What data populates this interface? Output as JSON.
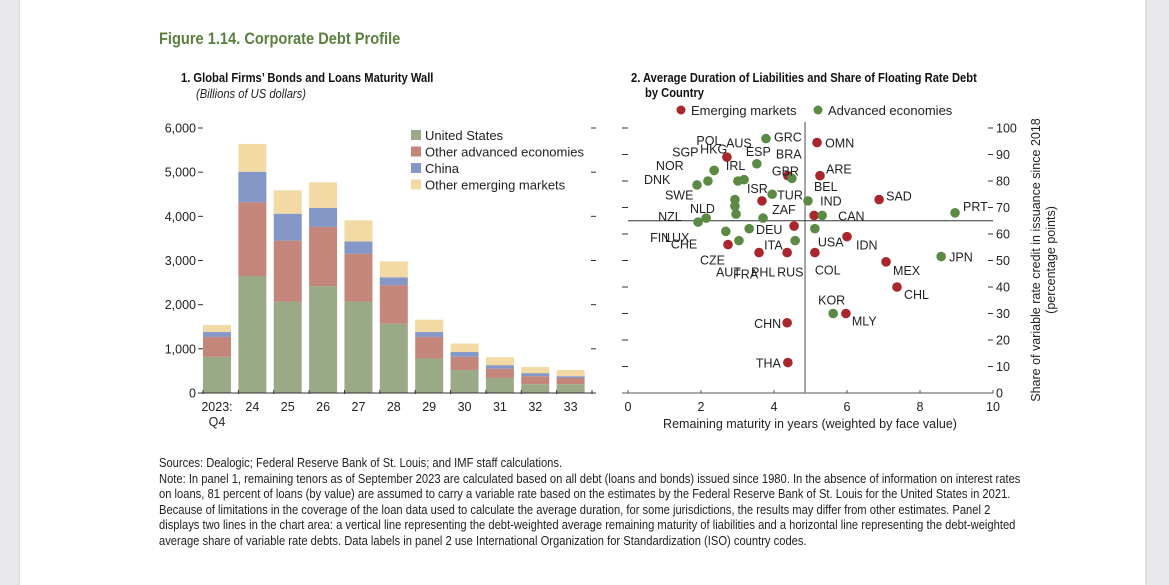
{
  "figure_title": "Figure 1.14. Corporate Debt Profile",
  "panel1": {
    "title": "1. Global Firms’ Bonds and Loans Maturity Wall",
    "subtitle": "(Billions of US dollars)"
  },
  "panel2": {
    "title_line1": "2. Average Duration of Liabilities and Share of Floating Rate Debt",
    "title_line2": "by Country"
  },
  "sources": "Sources: Dealogic; Federal Reserve Bank of St. Louis; and IMF staff calculations.",
  "note": "Note: In panel 1, remaining tenors as of September 2023 are calculated based on all debt (loans and bonds) issued since 1980. In the absence of information on interest rates on loans, 81 percent of loans (by value) are assumed to carry a variable rate based on the estimates by the Federal Reserve Bank of St. Louis for the United States in 2021. Because of limitations in the coverage of the loan data used to calculate the average duration, for some jurisdictions, the results may differ from other estimates. Panel 2 displays two lines in the chart area: a vertical line representing the debt-weighted average remaining maturity of liabilities and a horizontal line representing the debt-weighted average share of variable rate debts. Data labels in panel 2 use International Organization for Standardization (ISO) country codes.",
  "chart_data": [
    {
      "type": "bar",
      "stacked": true,
      "title": "1. Global Firms’ Bonds and Loans Maturity Wall",
      "subtitle": "(Billions of US dollars)",
      "xlabel": "",
      "ylabel": "",
      "ylim": [
        0,
        6000
      ],
      "yticks": [
        0,
        1000,
        2000,
        3000,
        4000,
        5000,
        6000
      ],
      "ytick_labels": [
        "0",
        "1,000",
        "2,000",
        "3,000",
        "4,000",
        "5,000",
        "6,000"
      ],
      "categories": [
        "2023:\nQ4",
        "24",
        "25",
        "26",
        "27",
        "28",
        "29",
        "30",
        "31",
        "32",
        "33"
      ],
      "legend_position": "top-right",
      "grid": false,
      "series": [
        {
          "name": "United States",
          "color": "#9aaa86",
          "values": [
            820,
            2650,
            2070,
            2420,
            2070,
            1570,
            780,
            520,
            340,
            200,
            200
          ]
        },
        {
          "name": "Other advanced economies",
          "color": "#c4867a",
          "values": [
            450,
            1670,
            1380,
            1340,
            1080,
            870,
            490,
            300,
            210,
            180,
            140
          ]
        },
        {
          "name": "China",
          "color": "#8497c6",
          "values": [
            110,
            690,
            610,
            430,
            280,
            180,
            110,
            110,
            80,
            70,
            40
          ]
        },
        {
          "name": "Other emerging markets",
          "color": "#f3daa4",
          "values": [
            160,
            630,
            530,
            580,
            480,
            360,
            280,
            190,
            180,
            140,
            140
          ]
        }
      ]
    },
    {
      "type": "scatter",
      "title": "2. Average Duration of Liabilities and Share of Floating Rate Debt by Country",
      "xlabel": "Remaining maturity in years (weighted by face value)",
      "ylabel": "Share of variable rate credit in issuance since 2018 (percentage points)",
      "xlim": [
        0,
        10
      ],
      "ylim": [
        0,
        100
      ],
      "xticks": [
        0,
        2,
        4,
        6,
        8,
        10
      ],
      "yticks": [
        0,
        10,
        20,
        30,
        40,
        50,
        60,
        70,
        80,
        90,
        100
      ],
      "y_axis_side": "right",
      "reference_lines": {
        "vertical_x": 4.85,
        "horizontal_y": 65
      },
      "legend_position": "top",
      "grid": false,
      "series": [
        {
          "name": "Emerging markets",
          "color": "#a8262c",
          "points": [
            {
              "label": "OMN",
              "x": 5.18,
              "y": 94.5
            },
            {
              "label": "POL",
              "x": 2.71,
              "y": 89
            },
            {
              "label": "BRA",
              "x": 4.38,
              "y": 82
            },
            {
              "label": "ARE",
              "x": 5.26,
              "y": 82
            },
            {
              "label": "ISR",
              "x": 3.67,
              "y": 72.5
            },
            {
              "label": "SAD",
              "x": 6.88,
              "y": 73
            },
            {
              "label": "IND",
              "x": 5.1,
              "y": 67
            },
            {
              "label": "ZAF",
              "x": 4.55,
              "y": 63
            },
            {
              "label": "IDN",
              "x": 6.0,
              "y": 59
            },
            {
              "label": "CZE",
              "x": 2.74,
              "y": 56
            },
            {
              "label": "PHL",
              "x": 3.59,
              "y": 53
            },
            {
              "label": "RUS",
              "x": 4.36,
              "y": 53
            },
            {
              "label": "COL",
              "x": 5.12,
              "y": 53
            },
            {
              "label": "MEX",
              "x": 7.07,
              "y": 49.5
            },
            {
              "label": "CHL",
              "x": 7.37,
              "y": 40
            },
            {
              "label": "MLY",
              "x": 5.97,
              "y": 30
            },
            {
              "label": "CHN",
              "x": 4.36,
              "y": 26.5
            },
            {
              "label": "THA",
              "x": 4.38,
              "y": 11.5
            }
          ]
        },
        {
          "name": "Advanced economies",
          "color": "#5a8a44",
          "points": [
            {
              "label": "GRC",
              "x": 3.78,
              "y": 96
            },
            {
              "label": "ESP",
              "x": 3.53,
              "y": 86.5
            },
            {
              "label": "GBR",
              "x": 4.49,
              "y": 81
            },
            {
              "label": "SGP",
              "x": 2.36,
              "y": 84
            },
            {
              "label": "HKG",
              "x": 2.36,
              "y": 84
            },
            {
              "label": "IRL",
              "x": 3.01,
              "y": 80
            },
            {
              "label": "AUS",
              "x": 3.18,
              "y": 80.5
            },
            {
              "label": "NOR",
              "x": 2.19,
              "y": 80
            },
            {
              "label": "DNK",
              "x": 1.89,
              "y": 78.5
            },
            {
              "label": "TUR",
              "x": 3.95,
              "y": 75
            },
            {
              "label": "BEL",
              "x": 4.93,
              "y": 72.5
            },
            {
              "label": "SWE",
              "x": 2.93,
              "y": 73
            },
            {
              "label": "NLD",
              "x": 2.93,
              "y": 70.5
            },
            {
              "label": "CAN",
              "x": 5.32,
              "y": 67
            },
            {
              "label": "PRT",
              "x": 8.96,
              "y": 68
            },
            {
              "label": "NZL",
              "x": 2.14,
              "y": 66
            },
            {
              "label": "LUX",
              "x": 2.96,
              "y": 67.5
            },
            {
              "label": "FIN",
              "x": 1.92,
              "y": 64.5
            },
            {
              "label": "DEU",
              "x": 3.7,
              "y": 66
            },
            {
              "label": "USA",
              "x": 5.12,
              "y": 62
            },
            {
              "label": "CHE",
              "x": 2.68,
              "y": 61
            },
            {
              "label": "FRA",
              "x": 3.32,
              "y": 62
            },
            {
              "label": "AUT",
              "x": 3.04,
              "y": 57.5
            },
            {
              "label": "ITA",
              "x": 4.58,
              "y": 57.5
            },
            {
              "label": "JPN",
              "x": 8.58,
              "y": 51.5
            },
            {
              "label": "KOR",
              "x": 5.62,
              "y": 30
            }
          ]
        }
      ]
    }
  ]
}
